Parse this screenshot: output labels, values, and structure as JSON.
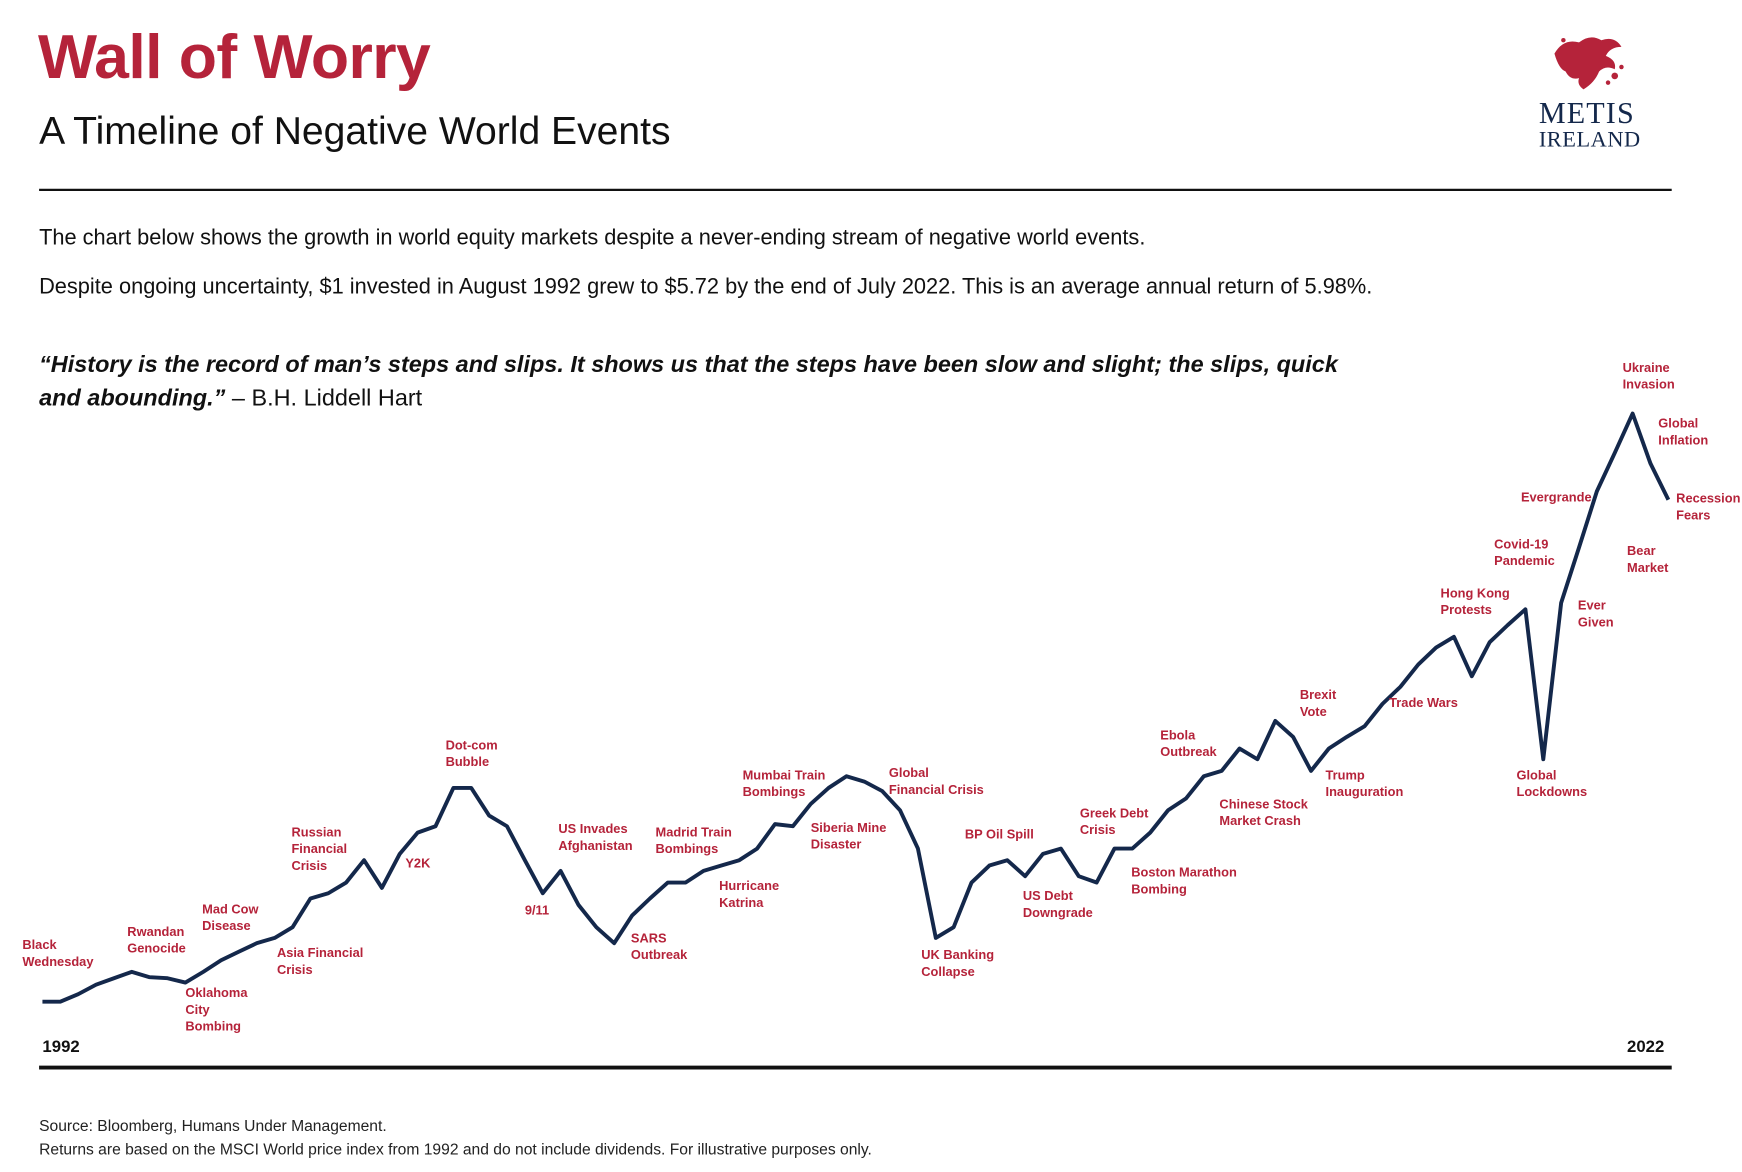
{
  "chart_data": {
    "type": "line",
    "title": "Wall of Worry",
    "subtitle": "A Timeline of Negative World Events",
    "intro": [
      "The chart below shows the growth in world equity markets despite a never-ending stream of negative world events.",
      "Despite ongoing uncertainty, $1 invested in August 1992 grew to $5.72 by the end of July 2022. This is an average annual return of 5.98%."
    ],
    "quote": {
      "text": "“History is the record of man’s steps and slips. It shows us that the steps have been slow and slight; the slips, quick and abounding.”",
      "author": "– B.H. Liddell Hart"
    },
    "logo": {
      "name": "METIS",
      "country": "IRELAND"
    },
    "start_label": "1992",
    "end_label": "2022",
    "color": "#14284b",
    "annotation_color": "#b5233a",
    "ylim": [
      1,
      6.67
    ],
    "values": [
      1.0,
      1.0,
      1.07,
      1.16,
      1.22,
      1.28,
      1.23,
      1.22,
      1.18,
      1.28,
      1.39,
      1.47,
      1.55,
      1.6,
      1.7,
      1.97,
      2.02,
      2.12,
      2.33,
      2.07,
      2.39,
      2.59,
      2.65,
      3.01,
      3.01,
      2.75,
      2.65,
      2.33,
      2.02,
      2.23,
      1.91,
      1.7,
      1.55,
      1.81,
      1.97,
      2.12,
      2.12,
      2.23,
      2.28,
      2.33,
      2.44,
      2.67,
      2.65,
      2.86,
      3.01,
      3.12,
      3.07,
      2.98,
      2.8,
      2.44,
      1.6,
      1.7,
      2.12,
      2.28,
      2.33,
      2.18,
      2.39,
      2.44,
      2.18,
      2.12,
      2.44,
      2.44,
      2.59,
      2.8,
      2.91,
      3.12,
      3.17,
      3.38,
      3.28,
      3.64,
      3.49,
      3.17,
      3.38,
      3.49,
      3.59,
      3.8,
      3.96,
      4.17,
      4.33,
      4.43,
      4.06,
      4.38,
      4.54,
      4.69,
      3.28,
      4.75,
      5.27,
      5.8,
      6.16,
      6.53,
      6.06,
      5.72
    ],
    "annotations": [
      "Black\nWednesday",
      "Rwandan\nGenocide",
      "Oklahoma\nCity\nBombing",
      "Mad Cow\nDisease",
      "Asia Financial\nCrisis",
      "Russian\nFinancial\nCrisis",
      "Y2K",
      "Dot-com\nBubble",
      "9/11",
      "US Invades\nAfghanistan",
      "SARS\nOutbreak",
      "Madrid Train\nBombings",
      "Hurricane\nKatrina",
      "Mumbai Train\nBombings",
      "Siberia Mine\nDisaster",
      "Global\nFinancial Crisis",
      "UK Banking\nCollapse",
      "BP Oil Spill",
      "US Debt\nDowngrade",
      "Greek Debt\nCrisis",
      "Boston Marathon\nBombing",
      "Ebola\nOutbreak",
      "Chinese Stock\nMarket Crash",
      "Brexit\nVote",
      "Trump\nInauguration",
      "Trade Wars",
      "Hong Kong\nProtests",
      "Global\nLockdowns",
      "Covid-19\nPandemic",
      "Ever\nGiven",
      "Evergrande",
      "Ukraine\nInvasion",
      "Global\nInflation",
      "Bear\nMarket",
      "Recession\nFears"
    ],
    "source": [
      "Source: Bloomberg, Humans Under Management.",
      "Returns are based on the MSCI World price index from 1992 and do not include dividends. For illustrative purposes only."
    ]
  }
}
